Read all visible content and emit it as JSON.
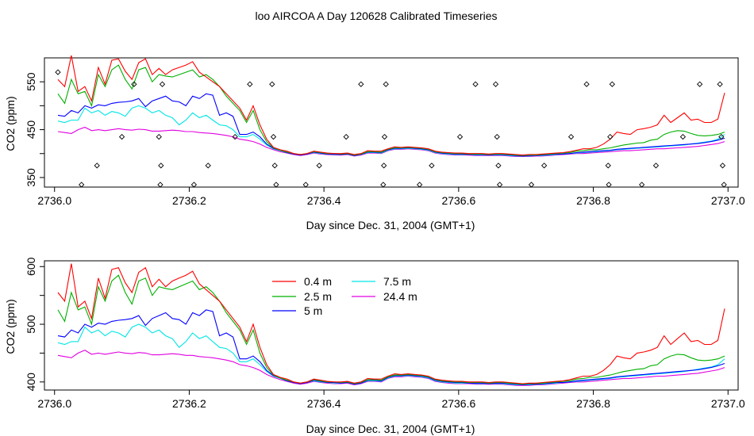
{
  "figure_title": "loo AIRCOA A  Day 120628  Calibrated Timeseries",
  "colors": {
    "0.4 m": "#ff0000",
    "2.5 m": "#00b000",
    "5 m": "#0000ff",
    "7.5 m": "#00e5e5",
    "24.4 m": "#e000e0",
    "axis": "#000000",
    "background": "#ffffff"
  },
  "chart_data": [
    {
      "type": "line",
      "title": "",
      "xlabel": "Day since Dec. 31, 2004 (GMT+1)",
      "ylabel": "CO2 (ppm)",
      "xlim": [
        2735.985,
        2737.015
      ],
      "ylim": [
        330,
        600
      ],
      "xticks": [
        2736.0,
        2736.2,
        2736.4,
        2736.6,
        2736.8,
        2737.0
      ],
      "xtick_labels": [
        "2736.0",
        "2736.2",
        "2736.4",
        "2736.6",
        "2736.8",
        "2737.0"
      ],
      "yticks": [
        350,
        400,
        450,
        500,
        550
      ],
      "ytick_labels": [
        "350",
        "",
        "450",
        "",
        "550"
      ],
      "grid": false,
      "legend": "none",
      "x": [
        2736.005,
        2736.015,
        2736.025,
        2736.035,
        2736.045,
        2736.055,
        2736.065,
        2736.075,
        2736.085,
        2736.095,
        2736.105,
        2736.115,
        2736.125,
        2736.135,
        2736.145,
        2736.155,
        2736.165,
        2736.175,
        2736.185,
        2736.195,
        2736.205,
        2736.215,
        2736.225,
        2736.235,
        2736.245,
        2736.255,
        2736.265,
        2736.275,
        2736.285,
        2736.295,
        2736.305,
        2736.315,
        2736.325,
        2736.335,
        2736.345,
        2736.355,
        2736.365,
        2736.375,
        2736.385,
        2736.395,
        2736.405,
        2736.415,
        2736.425,
        2736.435,
        2736.445,
        2736.455,
        2736.465,
        2736.475,
        2736.485,
        2736.495,
        2736.505,
        2736.515,
        2736.525,
        2736.535,
        2736.545,
        2736.555,
        2736.565,
        2736.575,
        2736.585,
        2736.595,
        2736.605,
        2736.615,
        2736.625,
        2736.635,
        2736.645,
        2736.655,
        2736.665,
        2736.675,
        2736.685,
        2736.695,
        2736.705,
        2736.715,
        2736.725,
        2736.735,
        2736.745,
        2736.755,
        2736.765,
        2736.775,
        2736.785,
        2736.795,
        2736.805,
        2736.815,
        2736.825,
        2736.835,
        2736.845,
        2736.855,
        2736.865,
        2736.875,
        2736.885,
        2736.895,
        2736.905,
        2736.915,
        2736.925,
        2736.935,
        2736.945,
        2736.955,
        2736.965,
        2736.975,
        2736.985,
        2736.995
      ],
      "series": [
        {
          "name": "0.4 m",
          "values": [
            555,
            540,
            605,
            530,
            540,
            510,
            580,
            545,
            595,
            598,
            572,
            555,
            590,
            598,
            565,
            578,
            565,
            575,
            580,
            585,
            592,
            570,
            560,
            550,
            540,
            525,
            510,
            495,
            470,
            500,
            460,
            430,
            413,
            408,
            405,
            400,
            398,
            400,
            405,
            403,
            401,
            400,
            400,
            401,
            398,
            400,
            406,
            405,
            405,
            410,
            414,
            413,
            414,
            413,
            412,
            410,
            405,
            403,
            402,
            401,
            401,
            400,
            400,
            400,
            399,
            400,
            400,
            399,
            398,
            397,
            398,
            398,
            399,
            400,
            401,
            402,
            404,
            407,
            410,
            410,
            413,
            420,
            430,
            445,
            442,
            440,
            450,
            452,
            455,
            460,
            480,
            465,
            475,
            485,
            470,
            472,
            465,
            465,
            472,
            527
          ]
        },
        {
          "name": "2.5 m",
          "values": [
            525,
            505,
            555,
            525,
            530,
            500,
            565,
            540,
            575,
            585,
            555,
            535,
            575,
            580,
            550,
            565,
            562,
            560,
            565,
            570,
            575,
            560,
            565,
            555,
            540,
            520,
            505,
            490,
            465,
            490,
            450,
            425,
            412,
            407,
            403,
            400,
            398,
            400,
            404,
            402,
            400,
            400,
            399,
            400,
            397,
            399,
            404,
            404,
            403,
            409,
            412,
            412,
            413,
            412,
            411,
            409,
            404,
            402,
            401,
            400,
            400,
            399,
            399,
            399,
            398,
            399,
            399,
            398,
            397,
            396,
            397,
            397,
            398,
            399,
            400,
            401,
            402,
            405,
            406,
            408,
            408,
            410,
            412,
            415,
            418,
            420,
            422,
            423,
            428,
            430,
            440,
            445,
            448,
            447,
            442,
            438,
            437,
            438,
            440,
            445
          ]
        },
        {
          "name": "5 m",
          "values": [
            480,
            478,
            490,
            485,
            500,
            495,
            502,
            500,
            505,
            507,
            508,
            510,
            515,
            498,
            510,
            515,
            520,
            510,
            508,
            500,
            520,
            515,
            525,
            522,
            480,
            485,
            478,
            440,
            440,
            445,
            435,
            420,
            411,
            407,
            402,
            399,
            397,
            399,
            403,
            401,
            399,
            399,
            398,
            399,
            396,
            398,
            403,
            403,
            402,
            408,
            411,
            411,
            412,
            411,
            410,
            408,
            403,
            401,
            400,
            399,
            399,
            398,
            398,
            398,
            397,
            398,
            398,
            397,
            396,
            395,
            396,
            396,
            397,
            398,
            399,
            399,
            400,
            402,
            403,
            404,
            405,
            406,
            407,
            409,
            410,
            411,
            412,
            413,
            414,
            415,
            416,
            417,
            418,
            419,
            420,
            421,
            423,
            425,
            428,
            432
          ]
        },
        {
          "name": "7.5 m",
          "values": [
            468,
            465,
            470,
            470,
            495,
            485,
            490,
            480,
            488,
            485,
            478,
            495,
            500,
            495,
            485,
            490,
            480,
            475,
            460,
            470,
            485,
            475,
            480,
            470,
            460,
            458,
            450,
            435,
            435,
            440,
            430,
            418,
            410,
            406,
            402,
            399,
            397,
            399,
            402,
            400,
            399,
            398,
            398,
            399,
            396,
            398,
            402,
            402,
            401,
            407,
            410,
            410,
            411,
            410,
            409,
            407,
            402,
            400,
            399,
            398,
            398,
            398,
            397,
            397,
            397,
            397,
            397,
            396,
            395,
            395,
            395,
            396,
            396,
            397,
            398,
            399,
            400,
            401,
            402,
            403,
            404,
            405,
            406,
            408,
            409,
            410,
            411,
            412,
            413,
            414,
            415,
            416,
            417,
            418,
            420,
            422,
            424,
            426,
            430,
            440
          ]
        },
        {
          "name": "24.4 m",
          "values": [
            446,
            444,
            442,
            450,
            455,
            448,
            450,
            448,
            450,
            452,
            450,
            449,
            451,
            450,
            447,
            447,
            448,
            449,
            448,
            446,
            446,
            444,
            443,
            442,
            440,
            438,
            435,
            430,
            428,
            425,
            420,
            413,
            408,
            404,
            401,
            398,
            396,
            398,
            401,
            399,
            398,
            397,
            397,
            398,
            395,
            397,
            401,
            401,
            400,
            406,
            409,
            409,
            410,
            409,
            408,
            406,
            401,
            399,
            398,
            397,
            397,
            397,
            396,
            396,
            396,
            396,
            396,
            395,
            394,
            394,
            394,
            395,
            395,
            396,
            397,
            398,
            399,
            400,
            400,
            401,
            402,
            403,
            404,
            405,
            406,
            406,
            407,
            408,
            409,
            410,
            410,
            411,
            412,
            413,
            414,
            415,
            417,
            419,
            421,
            425
          ]
        }
      ],
      "markers": {
        "shape": "open-diamond",
        "points": [
          [
            2736.005,
            570
          ],
          [
            2736.04,
            335
          ],
          [
            2736.063,
            375
          ],
          [
            2736.1,
            435
          ],
          [
            2736.118,
            545
          ],
          [
            2736.155,
            435
          ],
          [
            2736.157,
            335
          ],
          [
            2736.158,
            375
          ],
          [
            2736.16,
            545
          ],
          [
            2736.207,
            335
          ],
          [
            2736.228,
            375
          ],
          [
            2736.268,
            435
          ],
          [
            2736.29,
            545
          ],
          [
            2736.323,
            545
          ],
          [
            2736.325,
            435
          ],
          [
            2736.327,
            375
          ],
          [
            2736.329,
            335
          ],
          [
            2736.373,
            335
          ],
          [
            2736.393,
            375
          ],
          [
            2736.433,
            435
          ],
          [
            2736.455,
            545
          ],
          [
            2736.488,
            335
          ],
          [
            2736.489,
            375
          ],
          [
            2736.49,
            435
          ],
          [
            2736.492,
            545
          ],
          [
            2736.542,
            335
          ],
          [
            2736.56,
            375
          ],
          [
            2736.602,
            435
          ],
          [
            2736.625,
            545
          ],
          [
            2736.655,
            545
          ],
          [
            2736.657,
            435
          ],
          [
            2736.659,
            375
          ],
          [
            2736.661,
            335
          ],
          [
            2736.708,
            335
          ],
          [
            2736.727,
            375
          ],
          [
            2736.767,
            435
          ],
          [
            2736.79,
            545
          ],
          [
            2736.822,
            375
          ],
          [
            2736.823,
            335
          ],
          [
            2736.825,
            435
          ],
          [
            2736.828,
            545
          ],
          [
            2736.872,
            335
          ],
          [
            2736.893,
            375
          ],
          [
            2736.933,
            435
          ],
          [
            2736.958,
            545
          ],
          [
            2736.988,
            545
          ],
          [
            2736.99,
            435
          ],
          [
            2736.992,
            375
          ],
          [
            2736.994,
            335
          ]
        ]
      }
    },
    {
      "type": "line",
      "title": "",
      "xlabel": "Day since Dec. 31, 2004 (GMT+1)",
      "ylabel": "CO2 (ppm)",
      "xlim": [
        2735.985,
        2737.015
      ],
      "ylim": [
        386,
        610
      ],
      "xticks": [
        2736.0,
        2736.2,
        2736.4,
        2736.6,
        2736.8,
        2737.0
      ],
      "xtick_labels": [
        "2736.0",
        "2736.2",
        "2736.4",
        "2736.6",
        "2736.8",
        "2737.0"
      ],
      "yticks": [
        400,
        450,
        500,
        550,
        600
      ],
      "ytick_labels": [
        "400",
        "",
        "500",
        "",
        "600"
      ],
      "grid": false,
      "legend": "top-left",
      "legend_entries": [
        "0.4 m",
        "2.5 m",
        "5 m",
        "7.5 m",
        "24.4 m"
      ],
      "series_same_as_panel": 0
    }
  ]
}
